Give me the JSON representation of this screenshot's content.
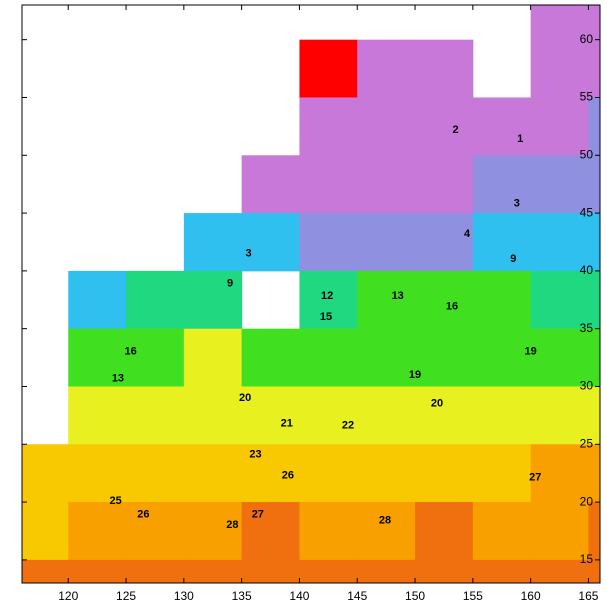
{
  "chart_data": {
    "type": "gridded-field",
    "xlim": [
      116,
      166
    ],
    "ylim": [
      13,
      63
    ],
    "xticks": [
      120,
      125,
      130,
      135,
      140,
      145,
      150,
      155,
      160,
      165
    ],
    "yticks": [
      15,
      20,
      25,
      30,
      35,
      40,
      45,
      50,
      55,
      60
    ],
    "cell_lon_edges": [
      115,
      120,
      125,
      130,
      135,
      140,
      145,
      150,
      155,
      160,
      165,
      170
    ],
    "cell_lat_edges": [
      65,
      60,
      55,
      50,
      45,
      40,
      35,
      30,
      25,
      20,
      15,
      10
    ],
    "values": [
      [
        null,
        null,
        null,
        null,
        null,
        null,
        null,
        null,
        null,
        1,
        1
      ],
      [
        null,
        null,
        null,
        null,
        null,
        0,
        1,
        2,
        null,
        1,
        1
      ],
      [
        null,
        null,
        null,
        null,
        null,
        1,
        2,
        2,
        2,
        2,
        3
      ],
      [
        null,
        null,
        null,
        null,
        2,
        1,
        1,
        2,
        3,
        4,
        5
      ],
      [
        null,
        null,
        null,
        8,
        10,
        6,
        5,
        7,
        8,
        8,
        8
      ],
      [
        null,
        11,
        14,
        15,
        null,
        15,
        16,
        16,
        16,
        15,
        14
      ],
      [
        null,
        16,
        19,
        20,
        19,
        19,
        19,
        19,
        19,
        19,
        19
      ],
      [
        null,
        20,
        22,
        21,
        21,
        21,
        21,
        21,
        21,
        22,
        22
      ],
      [
        24,
        25,
        25,
        24,
        24,
        24,
        25,
        24,
        25,
        26,
        26
      ],
      [
        25,
        27,
        27,
        27,
        28,
        27,
        27,
        28,
        27,
        27,
        28
      ],
      [
        28,
        28,
        28,
        28,
        28,
        28,
        28,
        28,
        28,
        28,
        28
      ]
    ],
    "colorscale": [
      {
        "value": 0,
        "color": "#ff0000"
      },
      {
        "value": 1,
        "color": "#c878d8"
      },
      {
        "value": 3,
        "color": "#9090e0"
      },
      {
        "value": 8,
        "color": "#30c0f0"
      },
      {
        "value": 12,
        "color": "#20d880"
      },
      {
        "value": 16,
        "color": "#40e020"
      },
      {
        "value": 20,
        "color": "#e8f020"
      },
      {
        "value": 23,
        "color": "#f8c800"
      },
      {
        "value": 26,
        "color": "#f8a000"
      },
      {
        "value": 28,
        "color": "#f07010"
      }
    ],
    "contour_labels": [
      {
        "value": 3,
        "x": 135.6,
        "y": 41.5
      },
      {
        "value": 9,
        "x": 134.0,
        "y": 38.9
      },
      {
        "value": 2,
        "x": 153.5,
        "y": 52.2
      },
      {
        "value": 1,
        "x": 159.1,
        "y": 51.4
      },
      {
        "value": 3,
        "x": 158.8,
        "y": 45.8
      },
      {
        "value": 4,
        "x": 154.5,
        "y": 43.2
      },
      {
        "value": 9,
        "x": 158.5,
        "y": 41.0
      },
      {
        "value": 13,
        "x": 148.5,
        "y": 37.8
      },
      {
        "value": 16,
        "x": 153.2,
        "y": 36.9
      },
      {
        "value": 19,
        "x": 160.0,
        "y": 33.0
      },
      {
        "value": 12,
        "x": 142.4,
        "y": 37.8
      },
      {
        "value": 15,
        "x": 142.3,
        "y": 36.0
      },
      {
        "value": 19,
        "x": 150.0,
        "y": 31.0
      },
      {
        "value": 20,
        "x": 151.9,
        "y": 28.5
      },
      {
        "value": 20,
        "x": 135.3,
        "y": 29.0
      },
      {
        "value": 21,
        "x": 138.9,
        "y": 26.8
      },
      {
        "value": 22,
        "x": 144.2,
        "y": 26.6
      },
      {
        "value": 23,
        "x": 136.2,
        "y": 24.1
      },
      {
        "value": 26,
        "x": 139.0,
        "y": 22.3
      },
      {
        "value": 25,
        "x": 124.1,
        "y": 20.1
      },
      {
        "value": 26,
        "x": 126.5,
        "y": 18.9
      },
      {
        "value": 27,
        "x": 136.4,
        "y": 18.9
      },
      {
        "value": 28,
        "x": 134.2,
        "y": 18.0
      },
      {
        "value": 28,
        "x": 147.4,
        "y": 18.4
      },
      {
        "value": 27,
        "x": 160.4,
        "y": 22.1
      },
      {
        "value": 16,
        "x": 125.4,
        "y": 33.0
      },
      {
        "value": 13,
        "x": 124.3,
        "y": 30.7
      }
    ]
  }
}
